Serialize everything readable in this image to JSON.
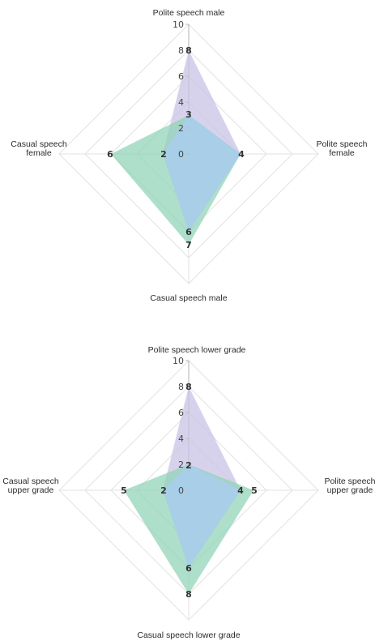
{
  "chart_data": [
    {
      "type": "radar",
      "axes": [
        {
          "label_lines": [
            "Polite speech male"
          ]
        },
        {
          "label_lines": [
            "Polite speech",
            "female"
          ]
        },
        {
          "label_lines": [
            "Casual speech male"
          ]
        },
        {
          "label_lines": [
            "Casual speech",
            "female"
          ]
        }
      ],
      "rlim": [
        0,
        10
      ],
      "ticks": [
        "0",
        "2",
        "4",
        "6",
        "8",
        "10"
      ],
      "grid": "diamond",
      "series": [
        {
          "values": [
            8,
            4,
            6,
            2
          ],
          "color": "#c9c3e6",
          "opacity": 0.75
        },
        {
          "values": [
            3,
            4,
            7,
            6
          ],
          "color": "#8fd3b5",
          "opacity": 0.72
        }
      ],
      "data_labels": [
        "8",
        "3",
        "4",
        "6",
        "7",
        "6",
        "2"
      ]
    },
    {
      "type": "radar",
      "axes": [
        {
          "label_lines": [
            "Polite speech lower grade"
          ]
        },
        {
          "label_lines": [
            "Polite speech",
            "upper grade"
          ]
        },
        {
          "label_lines": [
            "Casual speech lower grade"
          ]
        },
        {
          "label_lines": [
            "Casual speech",
            "upper grade"
          ]
        }
      ],
      "rlim": [
        0,
        10
      ],
      "ticks": [
        "0",
        "2",
        "4",
        "6",
        "8",
        "10"
      ],
      "grid": "diamond",
      "series": [
        {
          "values": [
            8,
            4,
            6,
            2
          ],
          "color": "#c9c3e6",
          "opacity": 0.75
        },
        {
          "values": [
            2,
            5,
            8,
            5
          ],
          "color": "#8fd3b5",
          "opacity": 0.72
        }
      ],
      "data_labels": [
        "8",
        "2",
        "4",
        "5",
        "6",
        "8",
        "2",
        "5"
      ]
    }
  ],
  "colors": {
    "overlap_blue": "#a9cdea",
    "grid": "#e2e2e2",
    "axis": "#bdbdbd"
  }
}
